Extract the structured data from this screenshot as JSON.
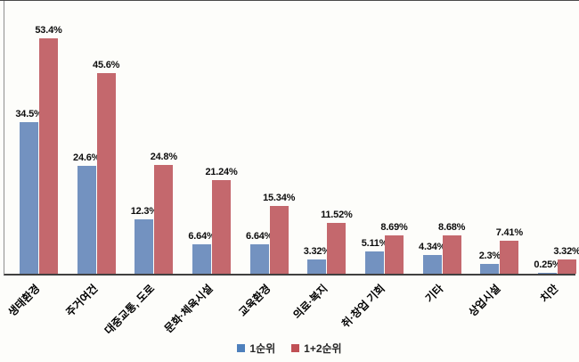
{
  "chart_data": {
    "type": "bar",
    "title": "",
    "xlabel": "",
    "ylabel": "",
    "grid": false,
    "legend_position": "bottom",
    "ylim": [
      0,
      62
    ],
    "background": "#fdfdfa",
    "axis_color": "#404040",
    "categories": [
      "생태환경",
      "주거여건",
      "대중교통, 도로",
      "문화·체육시설",
      "교육환경",
      "의료·복지",
      "취·창업 기회",
      "기타",
      "상업시설",
      "치안"
    ],
    "series": [
      {
        "name": "1순위",
        "color": "#7392c0",
        "legend_color": "#4e80bc",
        "values": [
          34.5,
          24.6,
          12.3,
          6.64,
          6.64,
          3.32,
          5.11,
          4.34,
          2.3,
          0.25
        ],
        "value_labels": [
          "34.5%",
          "24.6%",
          "12.3%",
          "6.64%",
          "6.64%",
          "3.32%",
          "5.11%",
          "4.34%",
          "2.3%",
          "0.25%"
        ]
      },
      {
        "name": "1+2순위",
        "color": "#c4686d",
        "legend_color": "#c05055",
        "values": [
          53.4,
          45.6,
          24.8,
          21.24,
          15.34,
          11.52,
          8.69,
          8.68,
          7.41,
          3.32
        ],
        "value_labels": [
          "53.4%",
          "45.6%",
          "24.8%",
          "21.24%",
          "15.34%",
          "11.52%",
          "8.69%",
          "8.68%",
          "7.41%",
          "3.32%"
        ]
      }
    ]
  }
}
